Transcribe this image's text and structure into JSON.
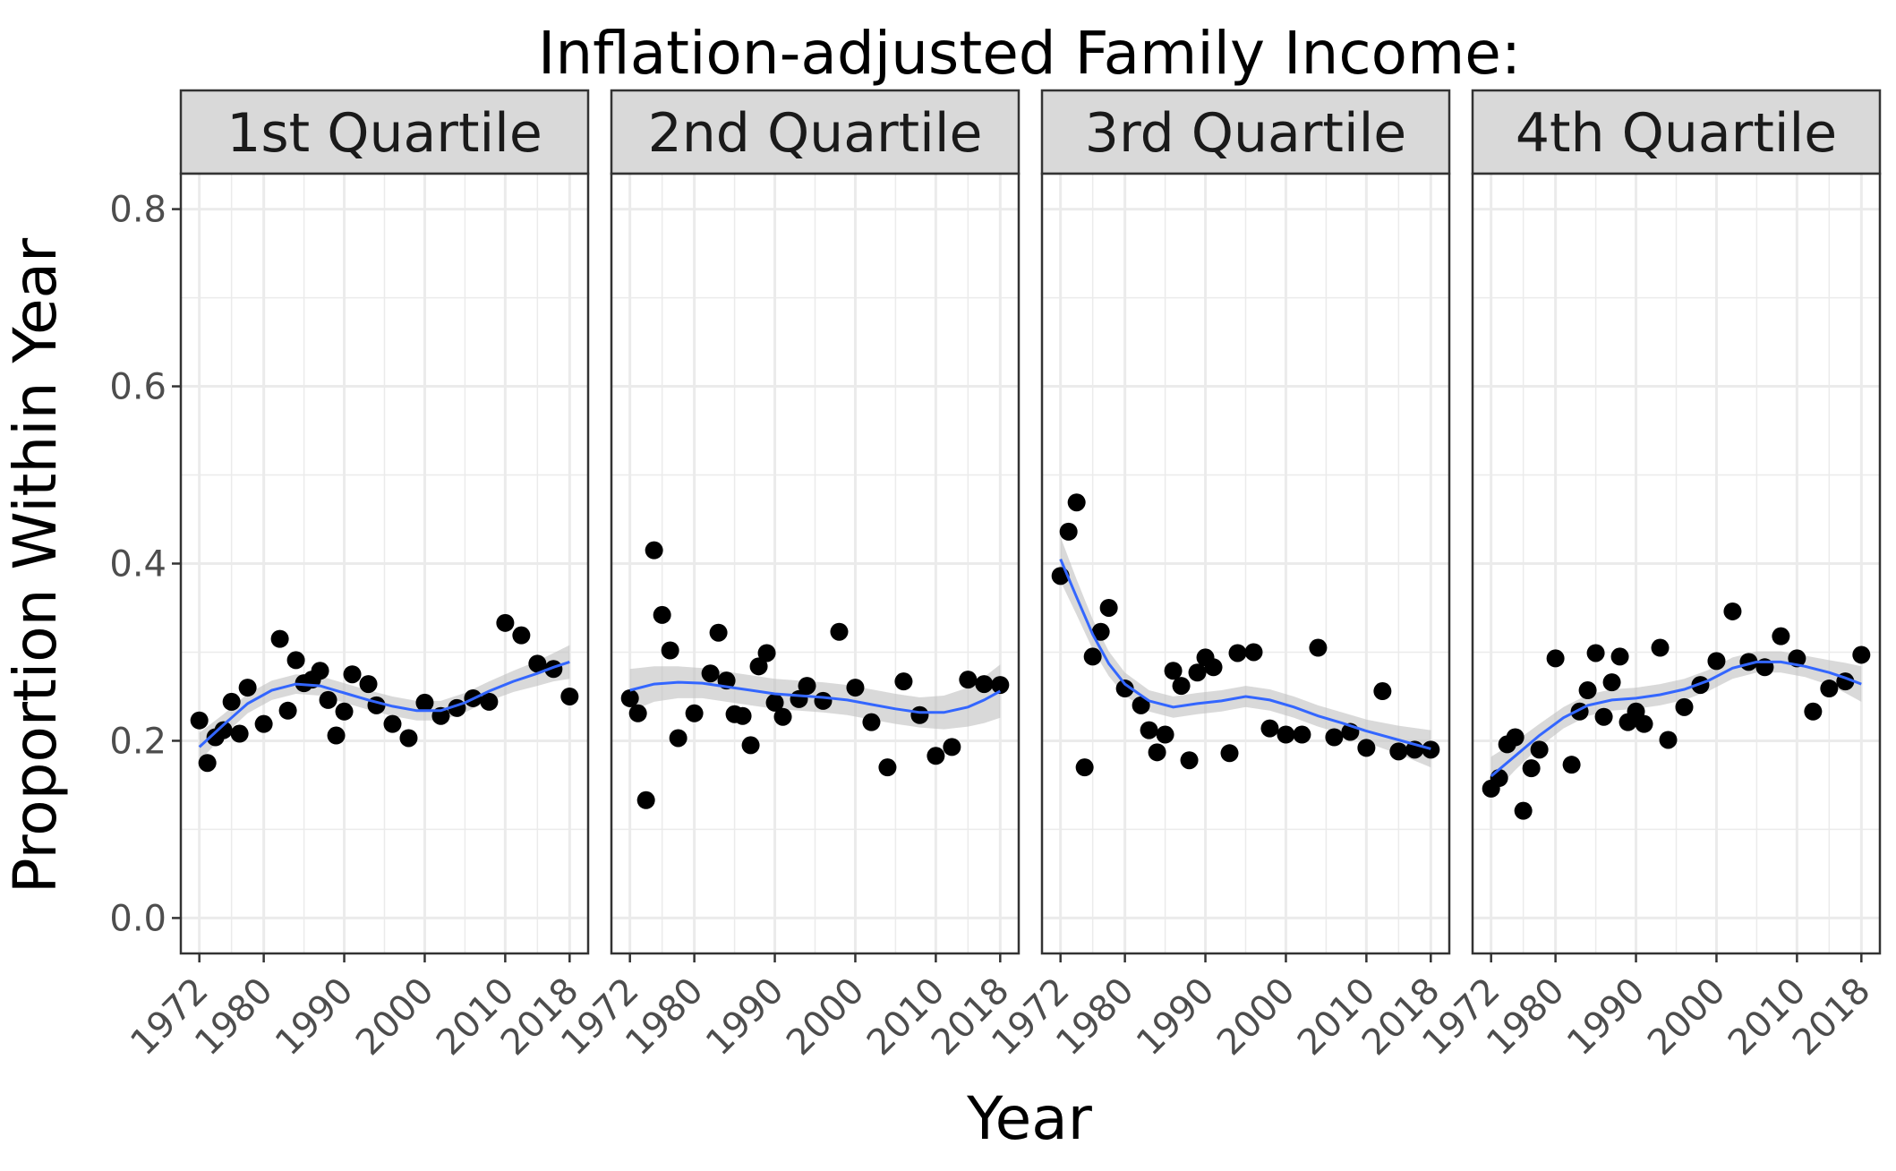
{
  "chart_data": {
    "type": "scatter",
    "title": "Inflation-adjusted Family Income:",
    "xlabel": "Year",
    "ylabel": "Proportion Within Year",
    "xlim": [
      1969.7,
      2020.3
    ],
    "ylim": [
      -0.04,
      0.84
    ],
    "x_ticks": [
      1972,
      1980,
      1990,
      2000,
      2010,
      2018
    ],
    "y_ticks": [
      0.0,
      0.2,
      0.4,
      0.6,
      0.8
    ],
    "y_tick_labels": [
      "0.0",
      "0.2",
      "0.4",
      "0.6",
      "0.8"
    ],
    "x_minor_breaks": [
      1976,
      1985,
      1995,
      2005,
      2014
    ],
    "y_minor_breaks": [
      0.1,
      0.3,
      0.5,
      0.7
    ],
    "point_color": "#000000",
    "smooth_color": "#3366FF",
    "ribbon_color": "#bfbfbf",
    "panel_border_color": "#333333",
    "strip_fill": "#d9d9d9",
    "panels": [
      {
        "label": "1st Quartile",
        "points": [
          [
            1972,
            0.223
          ],
          [
            1973,
            0.175
          ],
          [
            1974,
            0.204
          ],
          [
            1975,
            0.212
          ],
          [
            1976,
            0.244
          ],
          [
            1977,
            0.208
          ],
          [
            1978,
            0.26
          ],
          [
            1980,
            0.219
          ],
          [
            1982,
            0.315
          ],
          [
            1983,
            0.234
          ],
          [
            1984,
            0.291
          ],
          [
            1985,
            0.265
          ],
          [
            1986,
            0.269
          ],
          [
            1987,
            0.279
          ],
          [
            1988,
            0.246
          ],
          [
            1989,
            0.206
          ],
          [
            1990,
            0.233
          ],
          [
            1991,
            0.275
          ],
          [
            1993,
            0.264
          ],
          [
            1994,
            0.24
          ],
          [
            1996,
            0.219
          ],
          [
            1998,
            0.203
          ],
          [
            2000,
            0.243
          ],
          [
            2002,
            0.228
          ],
          [
            2004,
            0.237
          ],
          [
            2006,
            0.248
          ],
          [
            2008,
            0.244
          ],
          [
            2010,
            0.333
          ],
          [
            2012,
            0.319
          ],
          [
            2014,
            0.287
          ],
          [
            2016,
            0.281
          ],
          [
            2018,
            0.25
          ]
        ],
        "smooth": [
          [
            1972,
            0.193
          ],
          [
            1975,
            0.218
          ],
          [
            1978,
            0.242
          ],
          [
            1981,
            0.257
          ],
          [
            1984,
            0.264
          ],
          [
            1987,
            0.262
          ],
          [
            1990,
            0.254
          ],
          [
            1993,
            0.246
          ],
          [
            1996,
            0.239
          ],
          [
            1999,
            0.234
          ],
          [
            2002,
            0.234
          ],
          [
            2005,
            0.243
          ],
          [
            2008,
            0.256
          ],
          [
            2011,
            0.267
          ],
          [
            2014,
            0.276
          ],
          [
            2016,
            0.283
          ],
          [
            2018,
            0.289
          ]
        ],
        "ribbon_halfwidth": [
          0.016,
          0.012,
          0.011,
          0.011,
          0.011,
          0.011,
          0.011,
          0.011,
          0.011,
          0.011,
          0.011,
          0.011,
          0.011,
          0.012,
          0.014,
          0.016,
          0.019
        ]
      },
      {
        "label": "2nd Quartile",
        "points": [
          [
            1972,
            0.248
          ],
          [
            1973,
            0.231
          ],
          [
            1974,
            0.133
          ],
          [
            1975,
            0.415
          ],
          [
            1976,
            0.342
          ],
          [
            1977,
            0.302
          ],
          [
            1978,
            0.203
          ],
          [
            1980,
            0.231
          ],
          [
            1982,
            0.276
          ],
          [
            1983,
            0.322
          ],
          [
            1984,
            0.268
          ],
          [
            1985,
            0.23
          ],
          [
            1986,
            0.228
          ],
          [
            1987,
            0.195
          ],
          [
            1988,
            0.284
          ],
          [
            1989,
            0.299
          ],
          [
            1990,
            0.243
          ],
          [
            1991,
            0.227
          ],
          [
            1993,
            0.247
          ],
          [
            1994,
            0.262
          ],
          [
            1996,
            0.245
          ],
          [
            1998,
            0.323
          ],
          [
            2000,
            0.26
          ],
          [
            2002,
            0.221
          ],
          [
            2004,
            0.17
          ],
          [
            2006,
            0.267
          ],
          [
            2008,
            0.229
          ],
          [
            2010,
            0.183
          ],
          [
            2012,
            0.193
          ],
          [
            2014,
            0.269
          ],
          [
            2016,
            0.264
          ],
          [
            2018,
            0.263
          ]
        ],
        "smooth": [
          [
            1972,
            0.257
          ],
          [
            1975,
            0.264
          ],
          [
            1978,
            0.266
          ],
          [
            1981,
            0.265
          ],
          [
            1984,
            0.261
          ],
          [
            1987,
            0.257
          ],
          [
            1990,
            0.253
          ],
          [
            1993,
            0.251
          ],
          [
            1996,
            0.249
          ],
          [
            1999,
            0.246
          ],
          [
            2002,
            0.241
          ],
          [
            2005,
            0.236
          ],
          [
            2008,
            0.232
          ],
          [
            2011,
            0.232
          ],
          [
            2014,
            0.238
          ],
          [
            2016,
            0.246
          ],
          [
            2018,
            0.256
          ]
        ],
        "ribbon_halfwidth": [
          0.024,
          0.02,
          0.018,
          0.017,
          0.017,
          0.017,
          0.017,
          0.017,
          0.017,
          0.017,
          0.017,
          0.017,
          0.017,
          0.019,
          0.022,
          0.026,
          0.03
        ]
      },
      {
        "label": "3rd Quartile",
        "points": [
          [
            1972,
            0.386
          ],
          [
            1973,
            0.436
          ],
          [
            1974,
            0.469
          ],
          [
            1975,
            0.17
          ],
          [
            1976,
            0.295
          ],
          [
            1977,
            0.323
          ],
          [
            1978,
            0.35
          ],
          [
            1980,
            0.259
          ],
          [
            1982,
            0.24
          ],
          [
            1983,
            0.212
          ],
          [
            1984,
            0.187
          ],
          [
            1985,
            0.207
          ],
          [
            1986,
            0.279
          ],
          [
            1987,
            0.262
          ],
          [
            1988,
            0.178
          ],
          [
            1989,
            0.277
          ],
          [
            1990,
            0.294
          ],
          [
            1991,
            0.283
          ],
          [
            1993,
            0.186
          ],
          [
            1994,
            0.299
          ],
          [
            1996,
            0.3
          ],
          [
            1998,
            0.214
          ],
          [
            2000,
            0.207
          ],
          [
            2002,
            0.207
          ],
          [
            2004,
            0.305
          ],
          [
            2006,
            0.204
          ],
          [
            2008,
            0.21
          ],
          [
            2010,
            0.192
          ],
          [
            2012,
            0.256
          ],
          [
            2014,
            0.188
          ],
          [
            2016,
            0.19
          ],
          [
            2018,
            0.19
          ]
        ],
        "smooth": [
          [
            1972,
            0.405
          ],
          [
            1974,
            0.362
          ],
          [
            1976,
            0.32
          ],
          [
            1978,
            0.287
          ],
          [
            1980,
            0.264
          ],
          [
            1983,
            0.245
          ],
          [
            1986,
            0.238
          ],
          [
            1989,
            0.242
          ],
          [
            1992,
            0.245
          ],
          [
            1995,
            0.25
          ],
          [
            1998,
            0.246
          ],
          [
            2001,
            0.238
          ],
          [
            2004,
            0.228
          ],
          [
            2007,
            0.22
          ],
          [
            2010,
            0.211
          ],
          [
            2014,
            0.201
          ],
          [
            2018,
            0.191
          ]
        ],
        "ribbon_halfwidth": [
          0.025,
          0.02,
          0.017,
          0.014,
          0.013,
          0.012,
          0.012,
          0.012,
          0.012,
          0.012,
          0.012,
          0.012,
          0.012,
          0.012,
          0.013,
          0.016,
          0.021
        ]
      },
      {
        "label": "4th Quartile",
        "points": [
          [
            1972,
            0.146
          ],
          [
            1973,
            0.158
          ],
          [
            1974,
            0.196
          ],
          [
            1975,
            0.204
          ],
          [
            1976,
            0.121
          ],
          [
            1977,
            0.169
          ],
          [
            1978,
            0.19
          ],
          [
            1980,
            0.293
          ],
          [
            1982,
            0.173
          ],
          [
            1983,
            0.233
          ],
          [
            1984,
            0.257
          ],
          [
            1985,
            0.299
          ],
          [
            1986,
            0.227
          ],
          [
            1987,
            0.266
          ],
          [
            1988,
            0.295
          ],
          [
            1989,
            0.221
          ],
          [
            1990,
            0.233
          ],
          [
            1991,
            0.219
          ],
          [
            1993,
            0.305
          ],
          [
            1994,
            0.201
          ],
          [
            1996,
            0.238
          ],
          [
            1998,
            0.263
          ],
          [
            2000,
            0.29
          ],
          [
            2002,
            0.346
          ],
          [
            2004,
            0.289
          ],
          [
            2006,
            0.283
          ],
          [
            2008,
            0.318
          ],
          [
            2010,
            0.293
          ],
          [
            2012,
            0.233
          ],
          [
            2014,
            0.259
          ],
          [
            2016,
            0.267
          ],
          [
            2018,
            0.297
          ]
        ],
        "smooth": [
          [
            1972,
            0.16
          ],
          [
            1975,
            0.183
          ],
          [
            1978,
            0.206
          ],
          [
            1981,
            0.226
          ],
          [
            1984,
            0.24
          ],
          [
            1987,
            0.246
          ],
          [
            1990,
            0.248
          ],
          [
            1993,
            0.252
          ],
          [
            1996,
            0.258
          ],
          [
            1999,
            0.268
          ],
          [
            2002,
            0.282
          ],
          [
            2005,
            0.289
          ],
          [
            2008,
            0.289
          ],
          [
            2011,
            0.284
          ],
          [
            2014,
            0.277
          ],
          [
            2016,
            0.271
          ],
          [
            2018,
            0.264
          ]
        ],
        "ribbon_halfwidth": [
          0.022,
          0.016,
          0.013,
          0.012,
          0.012,
          0.012,
          0.012,
          0.012,
          0.012,
          0.012,
          0.012,
          0.012,
          0.012,
          0.012,
          0.014,
          0.017,
          0.02
        ]
      }
    ]
  }
}
